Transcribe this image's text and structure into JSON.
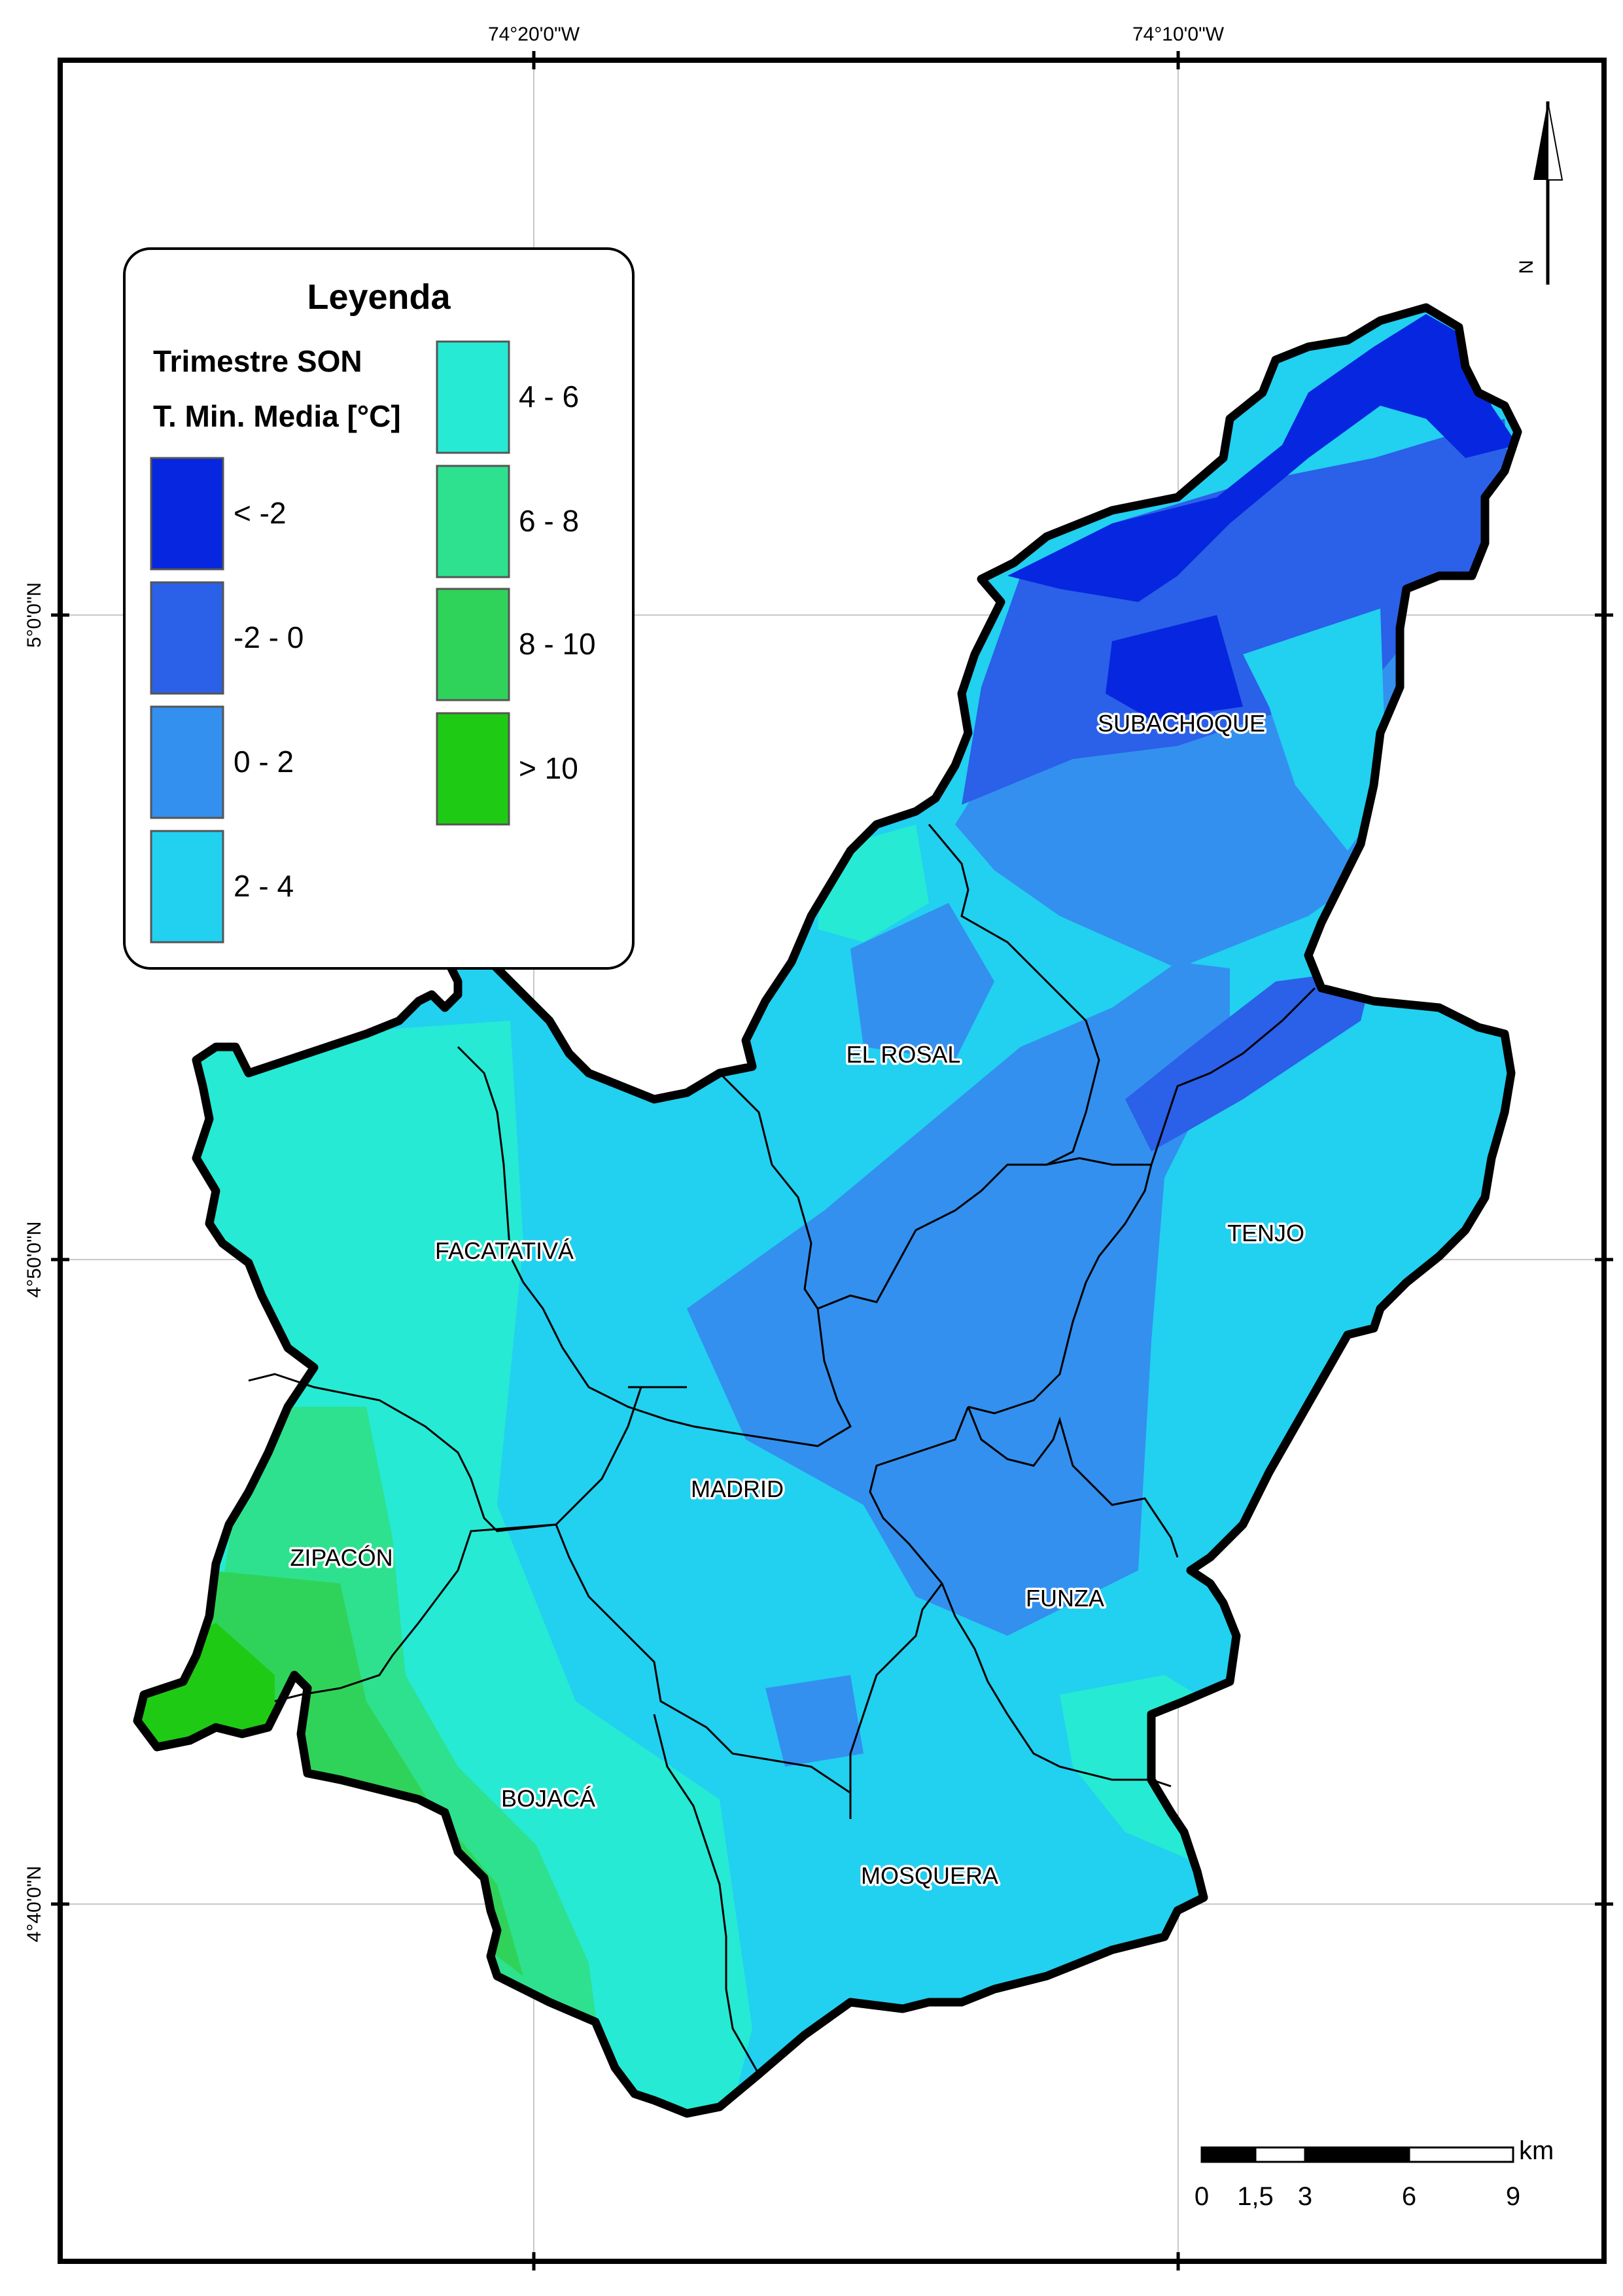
{
  "legend": {
    "title": "Leyenda",
    "subtitle1": "Trimestre SON",
    "subtitle2": "T. Min. Media [°C]",
    "classes": [
      {
        "label": "< -2",
        "color": "#0626e0"
      },
      {
        "label": "-2 - 0",
        "color": "#2b60e8"
      },
      {
        "label": "0 - 2",
        "color": "#3390ef"
      },
      {
        "label": "2 - 4",
        "color": "#22d0f0"
      },
      {
        "label": "4 - 6",
        "color": "#26ead4"
      },
      {
        "label": "6 - 8",
        "color": "#2ee18e"
      },
      {
        "label": "8 - 10",
        "color": "#30d359"
      },
      {
        "label": "> 10",
        "color": "#1fca15"
      }
    ]
  },
  "coordinates": {
    "lon_left": "74°20'0\"W",
    "lon_right": "74°10'0\"W",
    "lat_top": "5°0'0\"N",
    "lat_mid": "4°50'0\"N",
    "lat_bottom": "4°40'0\"N"
  },
  "north_arrow": {
    "label": "N"
  },
  "scale_bar": {
    "unit": "km",
    "ticks": [
      "0",
      "1,5",
      "3",
      "6",
      "9"
    ]
  },
  "municipalities": [
    {
      "name": "SUBACHOQUE"
    },
    {
      "name": "EL ROSAL"
    },
    {
      "name": "TENJO"
    },
    {
      "name": "FACATATIVÁ"
    },
    {
      "name": "MADRID"
    },
    {
      "name": "ZIPACÓN"
    },
    {
      "name": "FUNZA"
    },
    {
      "name": "BOJACÁ"
    },
    {
      "name": "MOSQUERA"
    }
  ]
}
